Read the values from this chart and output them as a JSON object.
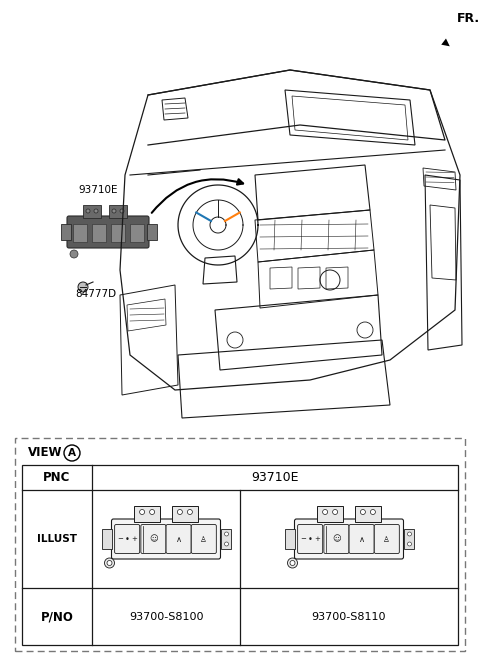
{
  "bg_color": "#ffffff",
  "lc": "#1a1a1a",
  "fr_label": "FR.",
  "label_93710E": "93710E",
  "label_84777D": "84777D",
  "table": {
    "pnc_label": "PNC",
    "pnc_value": "93710E",
    "illust_label": "ILLUST",
    "pno_label": "P/NO",
    "pno_values": [
      "93700-S8100",
      "93700-S8110"
    ],
    "view_label": "VIEW",
    "view_id": "A"
  }
}
